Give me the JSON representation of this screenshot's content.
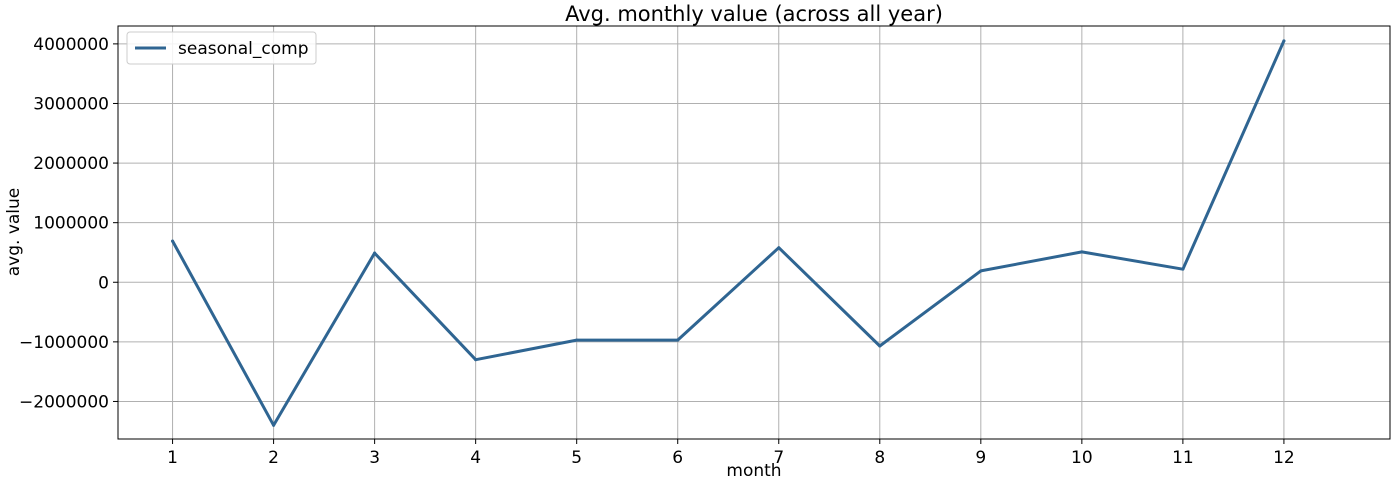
{
  "chart_data": {
    "type": "line",
    "title": "Avg. monthly value (across all year)",
    "xlabel": "month",
    "ylabel": "avg. value",
    "x": [
      1,
      2,
      3,
      4,
      5,
      6,
      7,
      8,
      9,
      10,
      11,
      12
    ],
    "series": [
      {
        "name": "seasonal_comp",
        "values": [
          690000,
          -2400000,
          490000,
          -1300000,
          -970000,
          -970000,
          580000,
          -1070000,
          190000,
          510000,
          220000,
          4050000
        ]
      }
    ],
    "xticks": [
      "1",
      "2",
      "3",
      "4",
      "5",
      "6",
      "7",
      "8",
      "9",
      "10",
      "11",
      "12"
    ],
    "yticks": [
      "−2000000",
      "−1000000",
      "0",
      "1000000",
      "2000000",
      "3000000",
      "4000000"
    ],
    "ytick_values": [
      -2000000,
      -1000000,
      0,
      1000000,
      2000000,
      3000000,
      4000000
    ],
    "xlim": [
      0.46,
      13.05
    ],
    "ylim": [
      -2630000,
      4300000
    ],
    "grid": true,
    "legend_position": "top-left",
    "line_color": "#2f6592"
  }
}
